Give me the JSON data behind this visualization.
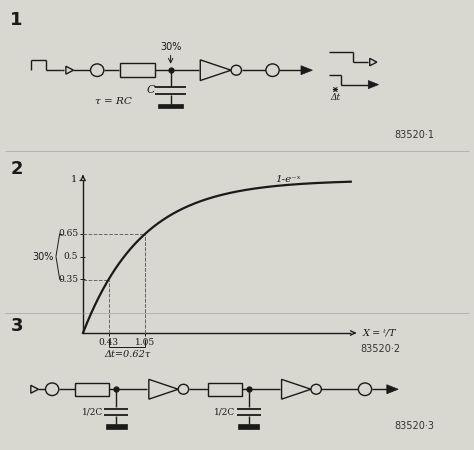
{
  "bg_color": "#d8d8d0",
  "line_color": "#1a1a1a",
  "dashed_color": "#555555",
  "curve_label": "1-e⁻ˣ",
  "x_label": "X = ᵗ/T",
  "annotation": "Δt·0.62τ",
  "ref1": "83520·1",
  "ref2": "83520·2",
  "ref3": "83520·3",
  "tau_label": "τ = RC"
}
